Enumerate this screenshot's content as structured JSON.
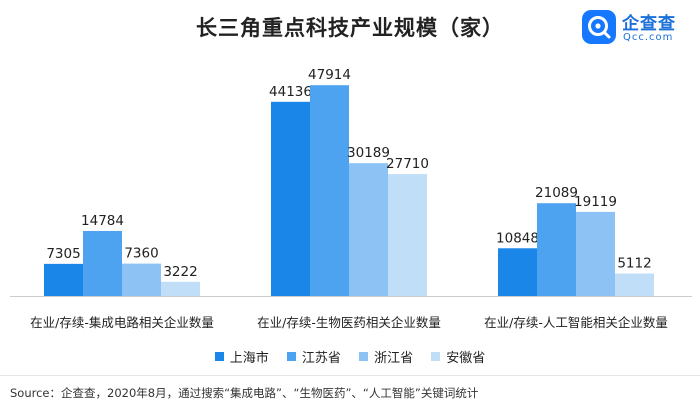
{
  "title": "长三角重点科技产业规模（家）",
  "logo": {
    "name": "企查查",
    "sub": "Qcc.com",
    "icon": "qichacha-logo-icon"
  },
  "source": "Source：企查查，2020年8月，通过搜索“集成电路”、“生物医药”、“人工智能”关键词统计",
  "colors": {
    "上海市": "#1a86e8",
    "江苏省": "#4da3f0",
    "浙江省": "#8cc3f4",
    "安徽省": "#c1def9"
  },
  "chart_data": {
    "type": "bar",
    "title": "长三角重点科技产业规模（家）",
    "categories": [
      "在业/存续-集成电路相关企业数量",
      "在业/存续-生物医药相关企业数量",
      "在业/存续-人工智能相关企业数量"
    ],
    "series": [
      {
        "name": "上海市",
        "values": [
          7305,
          44136,
          10848
        ]
      },
      {
        "name": "江苏省",
        "values": [
          14784,
          47914,
          21089
        ]
      },
      {
        "name": "浙江省",
        "values": [
          7360,
          30189,
          19119
        ]
      },
      {
        "name": "安徽省",
        "values": [
          3222,
          27710,
          5112
        ]
      }
    ],
    "ylim": [
      0,
      50000
    ],
    "grid": false,
    "legend_position": "bottom",
    "xlabel": "",
    "ylabel": ""
  }
}
